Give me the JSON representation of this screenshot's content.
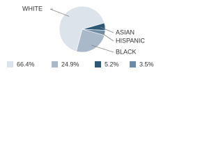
{
  "chart_data": {
    "type": "pie",
    "categories": [
      "WHITE",
      "BLACK",
      "ASIAN",
      "HISPANIC"
    ],
    "values": [
      66.4,
      24.9,
      5.2,
      3.5
    ],
    "value_labels": [
      "66.4%",
      "24.9%",
      "5.2%",
      "3.5%"
    ],
    "colors": [
      "#dde3ea",
      "#a9b9ca",
      "#2f5877",
      "#6f8ca7"
    ]
  }
}
